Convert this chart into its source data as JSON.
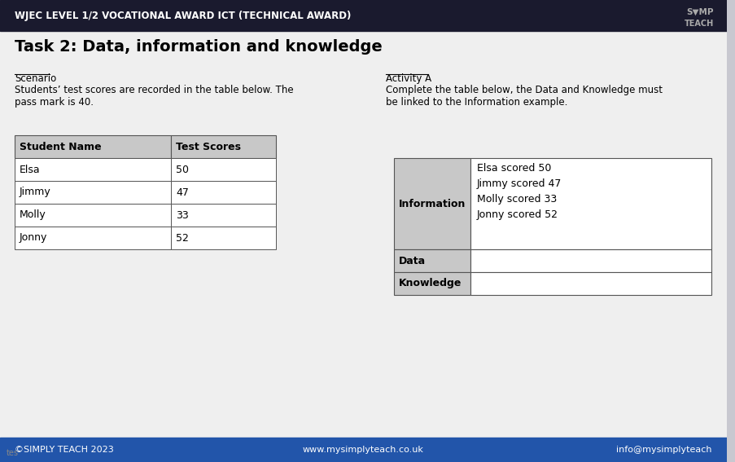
{
  "header_bg": "#1a1a2e",
  "header_text": "WJEC LEVEL 1/2 VOCATIONAL AWARD ICT (TECHNICAL AWARD)",
  "header_text_color": "#ffffff",
  "main_bg": "#c8c8d0",
  "content_bg": "#efefef",
  "title": "Task 2: Data, information and knowledge",
  "title_color": "#000000",
  "scenario_label": "Scenario",
  "scenario_text": "Students’ test scores are recorded in the table below. The\npass mark is 40.",
  "activity_label": "Activity A",
  "activity_text": "Complete the table below, the Data and Knowledge must\nbe linked to the Information example.",
  "left_table_headers": [
    "Student Name",
    "Test Scores"
  ],
  "left_table_data": [
    [
      "Elsa",
      "50"
    ],
    [
      "Jimmy",
      "47"
    ],
    [
      "Molly",
      "33"
    ],
    [
      "Jonny",
      "52"
    ]
  ],
  "right_table_col1": [
    "Information",
    "Data",
    "Knowledge"
  ],
  "right_table_col2": [
    "Elsa scored 50\nJimmy scored 47\nMolly scored 33\nJonny scored 52",
    "",
    ""
  ],
  "footer_bg": "#2255aa",
  "footer_text_left": "©SIMPLY TEACH 2023",
  "footer_text_mid": "www.mysimplyteach.co.uk",
  "footer_text_right": "info@mysimplyteach",
  "footer_text_color": "#ffffff",
  "table_header_bg": "#c8c8c8",
  "table_row_bg": "#ffffff",
  "table_border": "#555555"
}
